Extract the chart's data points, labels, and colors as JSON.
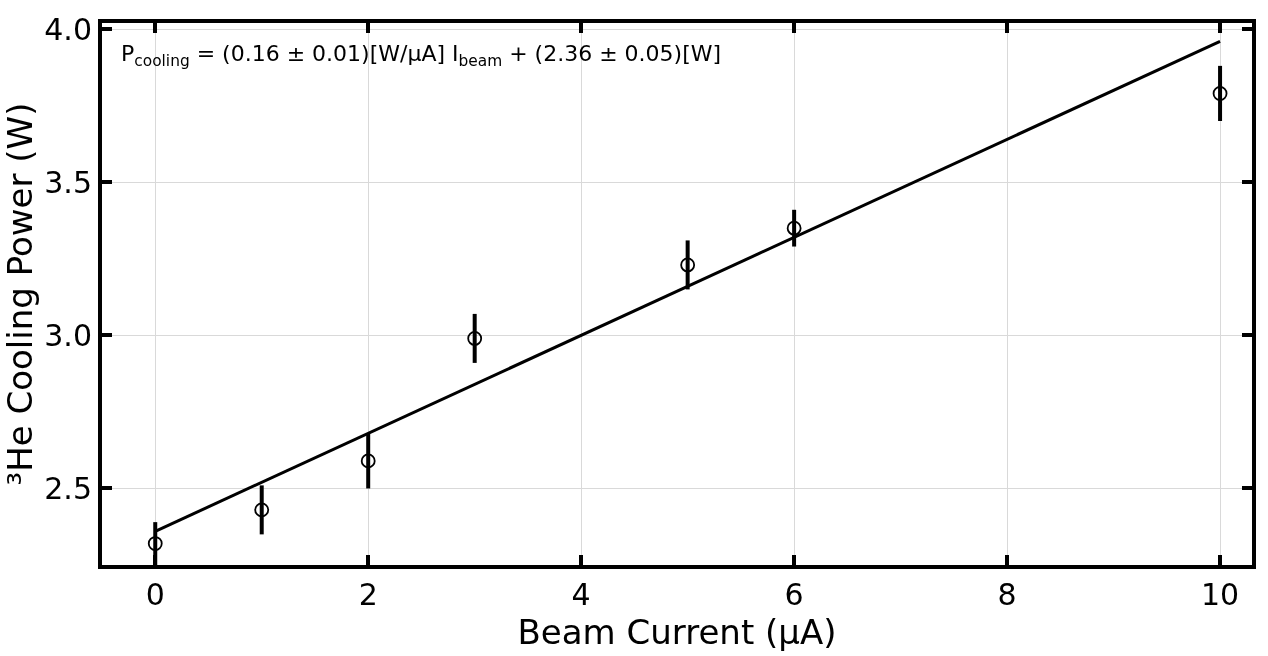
{
  "chart_data": {
    "type": "scatter",
    "xlabel": "Beam Current (μA)",
    "ylabel": "³He Cooling Power (W)",
    "annotations": [
      "P$_{cooling}$ = (0.16 ± 0.01)[W/μA] I$_{beam}$ + (2.36 ± 0.05)[W]"
    ],
    "x": [
      0,
      1,
      2,
      3,
      5,
      6,
      10
    ],
    "series": [
      {
        "color": "#000000",
        "marker": "circle",
        "values": [
          2.32,
          2.43,
          2.59,
          2.99,
          3.23,
          3.35,
          3.79
        ],
        "errors": [
          0.07,
          0.08,
          0.09,
          0.08,
          0.08,
          0.06,
          0.09
        ]
      },
      {
        "type": "line",
        "color": "#000000",
        "x": [
          0,
          10
        ],
        "values": [
          2.36,
          3.96
        ],
        "line_style": "solid"
      }
    ],
    "xlim": [
      -0.5,
      10.3
    ],
    "ylim": [
      2.25,
      4.02
    ],
    "xticks": [
      0,
      2,
      4,
      6,
      8,
      10
    ],
    "yticks": [
      2.5,
      {
        "value": 3.0,
        "label": "3.0"
      },
      3.5,
      {
        "value": 4.0,
        "label": "4.0"
      }
    ],
    "grid": true
  }
}
